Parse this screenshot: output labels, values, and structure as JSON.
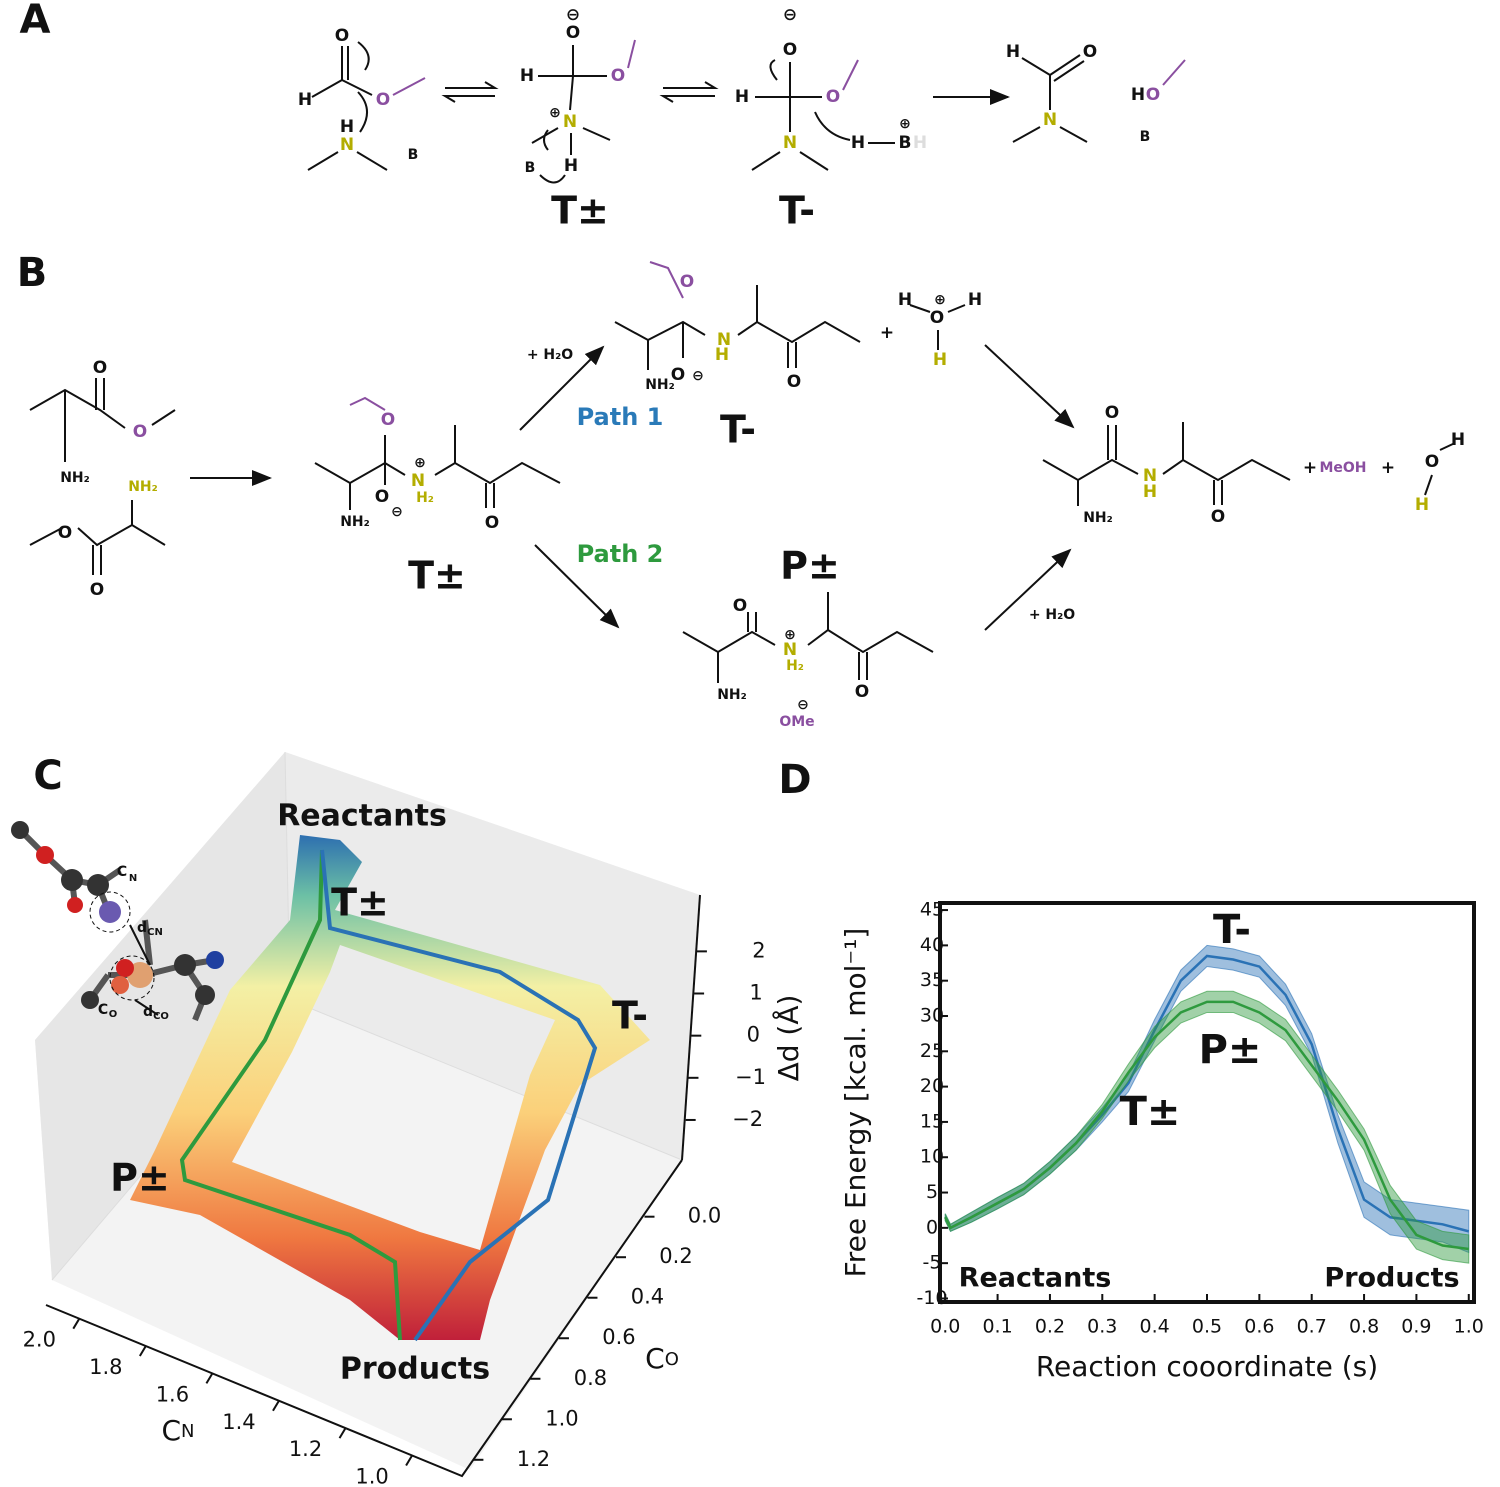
{
  "scheme_a": {
    "label": "A",
    "texts": [
      "O",
      "H",
      "O",
      "H",
      "N",
      "B",
      "⊖",
      "O",
      "H",
      "O",
      "⊕",
      "N",
      "H",
      "B",
      "T±",
      "⊖",
      "O",
      "H",
      "O",
      "N",
      "H",
      "⊕",
      "B",
      "H",
      "T-",
      "H",
      "O",
      "N",
      "H",
      "O",
      "B"
    ]
  },
  "scheme_b": {
    "label": "B",
    "texts": [
      "O",
      "O",
      "NH₂",
      "NH₂",
      "O",
      "O",
      "O",
      "⊕",
      "N",
      "H₂",
      "O",
      "⊖",
      "NH₂",
      "O",
      "T±",
      "+ H₂O",
      "Path 1",
      "Path 2",
      "O",
      "N",
      "H",
      "O",
      "⊖",
      "NH₂",
      "O",
      "T-",
      "+",
      "H",
      "⊕",
      "H",
      "O",
      "H",
      "P±",
      "O",
      "⊕",
      "N",
      "H₂",
      "O",
      "NH₂",
      "⊖",
      "OMe",
      "+ H₂O",
      "O",
      "N",
      "H",
      "NH₂",
      "O",
      "+",
      "MeOH",
      "+",
      "O",
      "H",
      "H"
    ]
  },
  "chart_data": [
    {
      "type": "surface3d",
      "label": "C",
      "xlabel": {
        "main": "C",
        "sub": "N"
      },
      "ylabel": {
        "main": "C",
        "sub": "O"
      },
      "zlabel": "Δd (Å)",
      "xlim": [
        0.85,
        2.1
      ],
      "xticks": [
        {
          "value": 2,
          "label": "2.0"
        },
        1.8,
        1.6,
        1.4,
        1.2,
        {
          "value": 1,
          "label": "1.0"
        }
      ],
      "ylim": [
        -0.27,
        1.28
      ],
      "yticks": [
        {
          "value": 0,
          "label": "0.0"
        },
        0.2,
        0.4,
        0.6,
        0.8,
        {
          "value": 1,
          "label": "1.0"
        },
        1.2
      ],
      "zlim": [
        -2.95,
        3.1
      ],
      "zticks": [
        2,
        1,
        0,
        {
          "value": -1,
          "label": "−1"
        },
        {
          "value": -2,
          "label": "−2"
        }
      ],
      "annotations": [
        "Reactants",
        "T±",
        "T-",
        "P±",
        "Products"
      ],
      "inset_labels": [
        "C",
        "N",
        "d",
        "CN",
        "C",
        "O",
        "d",
        "CO"
      ]
    },
    {
      "type": "line",
      "label": "D",
      "xlabel": "Reaction cooordinate (s)",
      "ylabel": "Free Energy [kcal. mol⁻¹]",
      "xlim": [
        -0.01,
        1.01
      ],
      "ylim": [
        -10.5,
        46
      ],
      "xticks": [
        {
          "value": 0,
          "label": "0.0"
        },
        0.1,
        0.2,
        0.3,
        0.4,
        0.5,
        0.6,
        0.7,
        0.8,
        0.9,
        {
          "value": 1,
          "label": "1.0"
        }
      ],
      "yticks": [
        -10,
        -5,
        0,
        5,
        10,
        15,
        20,
        25,
        30,
        35,
        40,
        45
      ],
      "x": [
        0,
        0.01,
        0.05,
        0.1,
        0.15,
        0.2,
        0.25,
        0.3,
        0.35,
        0.4,
        0.45,
        0.5,
        0.55,
        0.6,
        0.65,
        0.7,
        0.75,
        0.8,
        0.85,
        0.9,
        0.95,
        1.0
      ],
      "series": [
        {
          "color": "#2a72b5",
          "values": [
            1.5,
            0,
            1.5,
            3.5,
            5.5,
            8.5,
            12,
            16,
            20.5,
            28,
            35,
            38.5,
            38,
            37,
            33,
            26,
            14,
            4,
            1.5,
            1,
            0.5,
            -0.5
          ],
          "errors": [
            0.5,
            0.5,
            0.7,
            0.8,
            0.8,
            0.9,
            1,
            1,
            1.2,
            1.5,
            1.5,
            1.5,
            1.5,
            1.5,
            1.5,
            1.5,
            2,
            2.5,
            2.5,
            2.5,
            2.5,
            3
          ]
        },
        {
          "color": "#2e9a3e",
          "values": [
            1.5,
            0,
            1.5,
            3.5,
            5.5,
            8.5,
            12,
            16.5,
            22,
            27,
            30.5,
            32,
            32,
            30.5,
            28,
            23,
            18,
            12.5,
            4,
            -1,
            -2.5,
            -3
          ],
          "errors": [
            0.5,
            0.5,
            0.7,
            0.8,
            0.8,
            0.9,
            1,
            1,
            1.2,
            1.5,
            1.5,
            1.5,
            1.5,
            1.5,
            1.5,
            1.5,
            1.5,
            1.5,
            2,
            2,
            2,
            2
          ]
        }
      ],
      "annotations": [
        "T-",
        "P±",
        "T±",
        "Reactants",
        "Products"
      ]
    }
  ]
}
